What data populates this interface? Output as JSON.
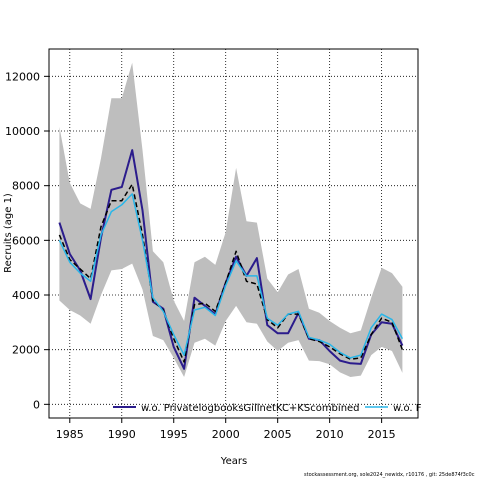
{
  "chart_data": {
    "type": "line",
    "title": "",
    "xlabel": "Years",
    "ylabel": "Recruits (age 1)",
    "xlim": [
      1983,
      2018.5
    ],
    "ylim": [
      -500,
      13000
    ],
    "x_ticks": [
      1985,
      1990,
      1995,
      2000,
      2005,
      2010,
      2015
    ],
    "y_ticks": [
      0,
      2000,
      4000,
      6000,
      8000,
      10000,
      12000
    ],
    "grid": true,
    "legend_placement": "bottom",
    "x": [
      1984,
      1985,
      1986,
      1987,
      1988,
      1989,
      1990,
      1991,
      1992,
      1993,
      1994,
      1995,
      1996,
      1997,
      1998,
      1999,
      2000,
      2001,
      2002,
      2003,
      2004,
      2005,
      2006,
      2007,
      2008,
      2009,
      2010,
      2011,
      2012,
      2013,
      2014,
      2015,
      2016,
      2017
    ],
    "band": {
      "color": "#bebebe",
      "upper": [
        10150,
        8100,
        7350,
        7150,
        9000,
        11200,
        11200,
        12500,
        9300,
        5600,
        5200,
        3800,
        3050,
        5200,
        5400,
        5100,
        6300,
        8650,
        6700,
        6650,
        4600,
        4100,
        4750,
        4950,
        3500,
        3350,
        3050,
        2800,
        2600,
        2700,
        3900,
        5000,
        4800,
        4300
      ],
      "lower": [
        3800,
        3450,
        3250,
        2950,
        4000,
        4900,
        4950,
        5150,
        4200,
        2500,
        2350,
        1700,
        1000,
        2250,
        2400,
        2150,
        3050,
        3600,
        3000,
        2950,
        2300,
        1950,
        2250,
        2350,
        1600,
        1580,
        1470,
        1170,
        1000,
        1050,
        1800,
        2100,
        1950,
        1150
      ]
    },
    "series": [
      {
        "name": "",
        "color": "#000000",
        "style": "dashed",
        "width": 1.5,
        "values": [
          6200,
          5300,
          4950,
          4600,
          6500,
          7450,
          7450,
          8050,
          6200,
          3800,
          3450,
          2400,
          1550,
          3650,
          3700,
          3400,
          4450,
          5600,
          4500,
          4400,
          3100,
          2800,
          3300,
          3300,
          2400,
          2300,
          2100,
          1850,
          1650,
          1700,
          2550,
          3150,
          3000,
          2000
        ]
      },
      {
        "name": "w.o. PrivatelogbooksGillnetKC+KScombined",
        "color": "#2b1c8c",
        "style": "solid",
        "width": 2,
        "values": [
          6650,
          5500,
          4900,
          3850,
          6100,
          7850,
          7950,
          9300,
          7100,
          3750,
          3500,
          2100,
          1300,
          3900,
          3600,
          3300,
          4450,
          5400,
          4700,
          5350,
          2900,
          2600,
          2600,
          3350,
          2400,
          2350,
          1950,
          1600,
          1500,
          1480,
          2550,
          3000,
          2950,
          2150
        ]
      },
      {
        "name": "w.o. F",
        "color": "#29b6e8",
        "style": "solid",
        "width": 1.5,
        "values": [
          6000,
          5200,
          4800,
          4500,
          6200,
          7050,
          7300,
          7700,
          6000,
          3900,
          3400,
          2550,
          1800,
          3450,
          3550,
          3250,
          4350,
          5250,
          4700,
          4700,
          3150,
          2900,
          3300,
          3400,
          2450,
          2350,
          2200,
          1900,
          1700,
          1800,
          2800,
          3300,
          3100,
          2400
        ]
      }
    ]
  },
  "legend": {
    "item1_label": "w.o. PrivatelogbooksGillnetKC+KScombined",
    "item2_label": "w.o. F"
  },
  "footer_text": "stockassessment.org, sole2024_newidx, r10176 , git: 25de874f3c0c"
}
